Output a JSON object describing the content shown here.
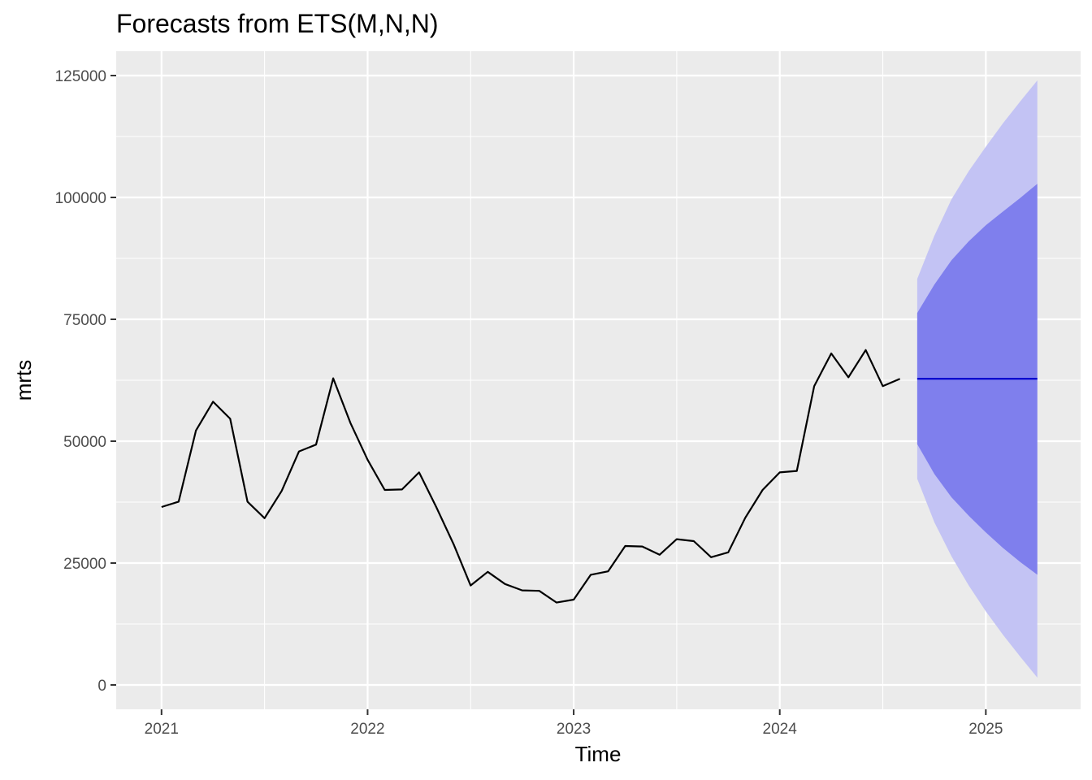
{
  "chart_data": {
    "type": "line",
    "title": "Forecasts from ETS(M,N,N)",
    "xlabel": "Time",
    "ylabel": "mrts",
    "xlim": [
      2020.78,
      2025.46
    ],
    "ylim": [
      -5000,
      130000
    ],
    "x_ticks": [
      2021,
      2022,
      2023,
      2024,
      2025
    ],
    "x_tick_labels": [
      "2021",
      "2022",
      "2023",
      "2024",
      "2025"
    ],
    "y_ticks": [
      0,
      25000,
      50000,
      75000,
      100000,
      125000
    ],
    "y_tick_labels": [
      "0",
      "25000",
      "50000",
      "75000",
      "100000",
      "125000"
    ],
    "grid": true,
    "colors": {
      "panel_background": "#ebebeb",
      "grid": "#ffffff",
      "observed_line": "#000000",
      "forecast_line": "#0000cc",
      "band_80": "#7f7fed",
      "band_95": "#c3c3f4"
    },
    "series": [
      {
        "x": [
          2021.0,
          2021.083,
          2021.167,
          2021.25,
          2021.333,
          2021.417,
          2021.5,
          2021.583,
          2021.667,
          2021.75,
          2021.833,
          2021.917,
          2022.0,
          2022.083,
          2022.167,
          2022.25,
          2022.333,
          2022.417,
          2022.5,
          2022.583,
          2022.667,
          2022.75,
          2022.833,
          2022.917,
          2023.0,
          2023.083,
          2023.167,
          2023.25,
          2023.333,
          2023.417,
          2023.5,
          2023.583,
          2023.667,
          2023.75,
          2023.833,
          2023.917,
          2024.0,
          2024.083,
          2024.167,
          2024.25,
          2024.333,
          2024.417,
          2024.5,
          2024.583
        ],
        "values": [
          36500,
          37600,
          52200,
          58100,
          54600,
          37600,
          34200,
          39800,
          47900,
          49300,
          62900,
          53700,
          46200,
          40000,
          40100,
          43600,
          36500,
          28900,
          20400,
          23200,
          20700,
          19400,
          19300,
          16900,
          17500,
          22600,
          23300,
          28500,
          28400,
          26700,
          29900,
          29500,
          26200,
          27200,
          34300,
          40000,
          43600,
          43900,
          61300,
          68000,
          63100,
          68700,
          61300,
          62800
        ]
      },
      {
        "name": "Point forecast",
        "x": [
          2024.667,
          2025.25
        ],
        "values": [
          62800,
          62800
        ]
      },
      {
        "name": "80% interval",
        "x": [
          2024.667,
          2024.75,
          2024.833,
          2024.917,
          2025.0,
          2025.083,
          2025.167,
          2025.25
        ],
        "lower": [
          49400,
          43300,
          38500,
          34700,
          31300,
          28100,
          25200,
          22600
        ],
        "upper": [
          76300,
          82100,
          87100,
          91000,
          94300,
          97100,
          99900,
          102800
        ]
      },
      {
        "name": "95% interval",
        "x": [
          2024.667,
          2024.75,
          2024.833,
          2024.917,
          2025.0,
          2025.083,
          2025.167,
          2025.25
        ],
        "lower": [
          42300,
          33400,
          26400,
          20400,
          15100,
          10300,
          5800,
          1500
        ],
        "upper": [
          83300,
          92100,
          99600,
          105400,
          110400,
          115200,
          119700,
          124000
        ]
      }
    ]
  }
}
